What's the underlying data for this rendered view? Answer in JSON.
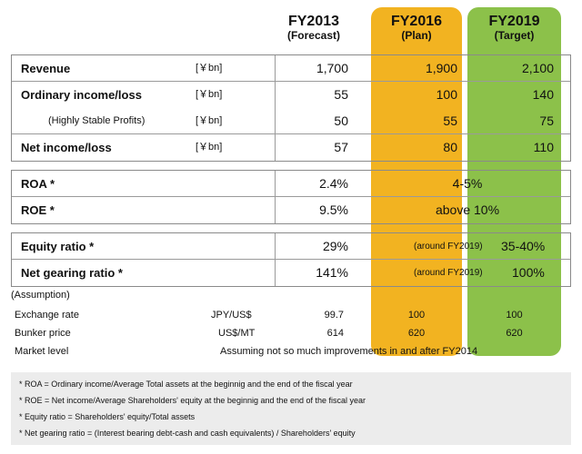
{
  "headers": {
    "fy2013": {
      "year": "FY2013",
      "sub": "(Forecast)"
    },
    "fy2016": {
      "year": "FY2016",
      "sub": "(Plan)"
    },
    "fy2019": {
      "year": "FY2019",
      "sub": "(Target)"
    }
  },
  "colors": {
    "fy2016_bg": "#f2b321",
    "fy2019_bg": "#8cc14a"
  },
  "income": {
    "unit": "[￥bn]",
    "revenue": {
      "label": "Revenue",
      "fy2013": "1,700",
      "fy2016": "1,900",
      "fy2019": "2,100"
    },
    "ordinary": {
      "label": "Ordinary income/loss",
      "fy2013": "55",
      "fy2016": "100",
      "fy2019": "140"
    },
    "stable": {
      "label": "(Highly Stable Profits)",
      "fy2013": "50",
      "fy2016": "55",
      "fy2019": "75"
    },
    "net": {
      "label": "Net income/loss",
      "fy2013": "57",
      "fy2016": "80",
      "fy2019": "110"
    }
  },
  "returns": {
    "roa": {
      "label": "ROA *",
      "fy2013": "2.4%",
      "target": "4-5%"
    },
    "roe": {
      "label": "ROE *",
      "fy2013": "9.5%",
      "target": "above 10%"
    }
  },
  "ratios": {
    "equity": {
      "label": "Equity ratio *",
      "fy2013": "29%",
      "note": "(around FY2019)",
      "fy2019": "35-40%"
    },
    "gearing": {
      "label": "Net gearing ratio *",
      "fy2013": "141%",
      "note": "(around FY2019)",
      "fy2019": "100%"
    }
  },
  "assumption": {
    "title": "(Assumption)",
    "exchange": {
      "label": "Exchange rate",
      "unit": "JPY/US$",
      "fy2013": "99.7",
      "fy2016": "100",
      "fy2019": "100"
    },
    "bunker": {
      "label": "Bunker price",
      "unit": "US$/MT",
      "fy2013": "614",
      "fy2016": "620",
      "fy2019": "620"
    },
    "market": {
      "label": "Market level",
      "text": "Assuming not so much improvements in and after FY2014"
    }
  },
  "footnotes": [
    "* ROA = Ordinary income/Average Total assets at the beginnig and the end of the fiscal year",
    "* ROE = Net income/Average Shareholders' equity at the beginnig and the end of the fiscal year",
    "* Equity ratio = Shareholders' equity/Total assets",
    "* Net gearing ratio = (Interest bearing debt-cash and cash equivalents) / Shareholders' equity"
  ]
}
